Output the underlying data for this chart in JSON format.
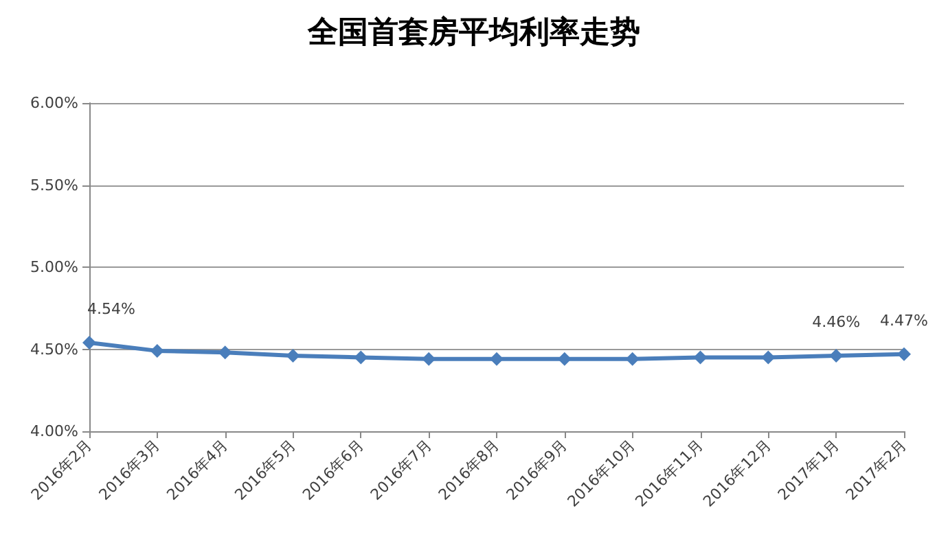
{
  "chart_data": {
    "type": "line",
    "title": "全国首套房平均利率走势",
    "categories": [
      "2016年2月",
      "2016年3月",
      "2016年4月",
      "2016年5月",
      "2016年6月",
      "2016年7月",
      "2016年8月",
      "2016年9月",
      "2016年10月",
      "2016年11月",
      "2016年12月",
      "2017年1月",
      "2017年2月"
    ],
    "series": [
      {
        "color": "#4a7ebb",
        "values": [
          4.54,
          4.49,
          4.48,
          4.46,
          4.45,
          4.44,
          4.44,
          4.44,
          4.44,
          4.45,
          4.45,
          4.46,
          4.47
        ],
        "value_labels": [
          "4.54%",
          null,
          null,
          null,
          null,
          null,
          null,
          null,
          null,
          null,
          null,
          "4.46%",
          "4.47%"
        ]
      }
    ],
    "ylim": [
      4,
      6
    ],
    "yticks": [
      {
        "value": 4,
        "label": "4.00%"
      },
      {
        "value": 4.5,
        "label": "4.50%"
      },
      {
        "value": 5,
        "label": "5.00%"
      },
      {
        "value": 5.5,
        "label": "5.50%"
      },
      {
        "value": 6,
        "label": "6.00%"
      }
    ],
    "grid": "y",
    "marker": "diamond",
    "line_style": "solid"
  }
}
